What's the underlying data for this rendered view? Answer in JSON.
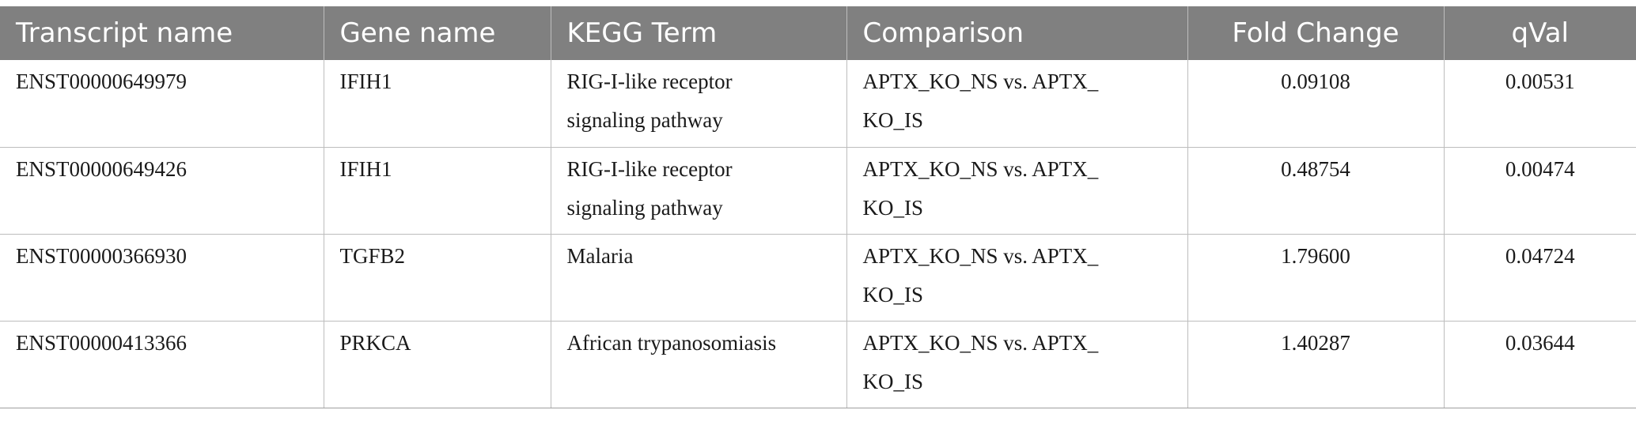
{
  "table": {
    "headers": [
      "Transcript name",
      "Gene name",
      "KEGG Term",
      "Comparison",
      "Fold Change",
      "qVal"
    ],
    "rows": [
      {
        "transcript": "ENST00000649979",
        "gene": "IFIH1",
        "kegg_line1": "RIG-I-like receptor",
        "kegg_line2": "signaling pathway",
        "comparison_line1": "APTX_KO_NS vs. APTX_",
        "comparison_line2": "KO_IS",
        "fold_change": "0.09108",
        "qval": "0.00531"
      },
      {
        "transcript": "ENST00000649426",
        "gene": "IFIH1",
        "kegg_line1": "RIG-I-like receptor",
        "kegg_line2": "signaling pathway",
        "comparison_line1": "APTX_KO_NS vs. APTX_",
        "comparison_line2": "KO_IS",
        "fold_change": "0.48754",
        "qval": "0.00474"
      },
      {
        "transcript": "ENST00000366930",
        "gene": "TGFB2",
        "kegg_line1": "Malaria",
        "kegg_line2": "",
        "comparison_line1": "APTX_KO_NS vs. APTX_",
        "comparison_line2": "KO_IS",
        "fold_change": "1.79600",
        "qval": "0.04724"
      },
      {
        "transcript": "ENST00000413366",
        "gene": "PRKCA",
        "kegg_line1": "African trypanosomiasis",
        "kegg_line2": "",
        "comparison_line1": "APTX_KO_NS vs. APTX_",
        "comparison_line2": "KO_IS",
        "fold_change": "1.40287",
        "qval": "0.03644"
      }
    ]
  }
}
